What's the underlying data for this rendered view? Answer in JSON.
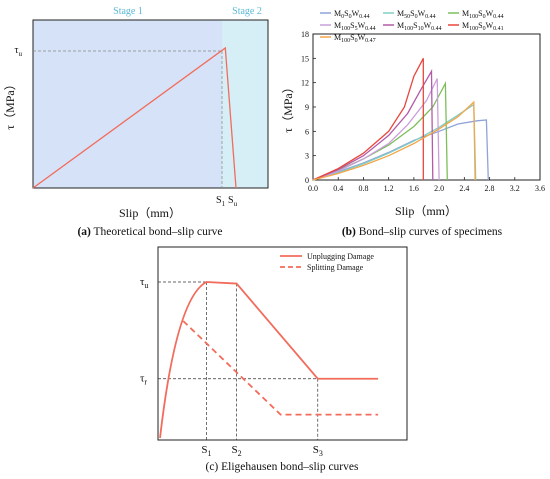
{
  "chart_data": [
    {
      "type": "line",
      "id": "a",
      "caption_tag": "(a)",
      "caption_text": " Theoretical bond–slip curve",
      "xlabel": "Slip（mm）",
      "ylabel": "τ（MPa）",
      "regions": [
        {
          "label": "Stage 1",
          "color": "#d6e2f7"
        },
        {
          "label": "Stage 2",
          "color": "#d6eff6"
        }
      ],
      "x_marks": [
        "S",
        "S"
      ],
      "x_mark_subs": [
        "1",
        "u"
      ],
      "y_marks": [
        "τ"
      ],
      "y_mark_subs": [
        "u"
      ],
      "curve_color": "#f26b5b",
      "series": [
        {
          "x": [
            0,
            0.9,
            0.95
          ],
          "y": [
            0,
            1,
            0
          ]
        }
      ],
      "xlim": [
        0,
        1.1
      ],
      "ylim": [
        0,
        1.2
      ]
    },
    {
      "type": "line",
      "id": "b",
      "caption_tag": "(b)",
      "caption_text": " Bond–slip curves of specimens",
      "xlabel": "Slip（mm）",
      "ylabel": "τ（MPa）",
      "xlim": [
        0,
        3.6
      ],
      "ylim": [
        0,
        18
      ],
      "xticks": [
        "0.0",
        "0.4",
        "0.8",
        "1.2",
        "1.6",
        "2.0",
        "2.4",
        "2.8",
        "3.2",
        "3.6"
      ],
      "yticks": [
        "0",
        "3",
        "6",
        "9",
        "12",
        "15",
        "18"
      ],
      "legend_location": "top",
      "series": [
        {
          "name": "M0S0W0.44",
          "label_main": [
            "M",
            "0",
            "S",
            "0",
            "W",
            "0.44"
          ],
          "color": "#8fa3d9",
          "points": [
            [
              0,
              0
            ],
            [
              0.4,
              1.0
            ],
            [
              0.8,
              2.1
            ],
            [
              1.2,
              3.4
            ],
            [
              1.6,
              4.9
            ],
            [
              2.0,
              6.0
            ],
            [
              2.3,
              6.9
            ],
            [
              2.6,
              7.3
            ],
            [
              2.75,
              7.4
            ],
            [
              2.78,
              0
            ]
          ]
        },
        {
          "name": "M50S0W0.44",
          "label_main": [
            "M",
            "50",
            "S",
            "0",
            "W",
            "0.44"
          ],
          "color": "#7fcfc4",
          "points": [
            [
              0,
              0
            ],
            [
              0.4,
              0.9
            ],
            [
              0.8,
              2.0
            ],
            [
              1.2,
              3.3
            ],
            [
              1.6,
              4.8
            ],
            [
              2.0,
              6.5
            ],
            [
              2.3,
              8.0
            ],
            [
              2.55,
              9.3
            ],
            [
              2.58,
              0
            ]
          ]
        },
        {
          "name": "M100S0W0.44",
          "label_main": [
            "M",
            "100",
            "S",
            "0",
            "W",
            "0.44"
          ],
          "color": "#7cbf5a",
          "points": [
            [
              0,
              0
            ],
            [
              0.4,
              1.2
            ],
            [
              0.8,
              2.6
            ],
            [
              1.2,
              4.3
            ],
            [
              1.6,
              6.6
            ],
            [
              1.9,
              9.0
            ],
            [
              2.1,
              11.9
            ],
            [
              2.13,
              0
            ]
          ]
        },
        {
          "name": "M100S5W0.44",
          "label_main": [
            "M",
            "100",
            "S",
            "5",
            "W",
            "0.44"
          ],
          "color": "#c9a0dc",
          "points": [
            [
              0,
              0
            ],
            [
              0.4,
              1.1
            ],
            [
              0.8,
              2.6
            ],
            [
              1.2,
              4.5
            ],
            [
              1.5,
              6.8
            ],
            [
              1.8,
              9.8
            ],
            [
              1.97,
              12.5
            ],
            [
              2.0,
              0
            ]
          ]
        },
        {
          "name": "M100S10W0.44",
          "label_main": [
            "M",
            "100",
            "S",
            "10",
            "W",
            "0.44"
          ],
          "color": "#b35aa8",
          "points": [
            [
              0,
              0
            ],
            [
              0.4,
              1.3
            ],
            [
              0.8,
              3.0
            ],
            [
              1.2,
              5.5
            ],
            [
              1.5,
              8.2
            ],
            [
              1.7,
              11.0
            ],
            [
              1.88,
              13.4
            ],
            [
              1.9,
              0
            ]
          ]
        },
        {
          "name": "M100S0W0.41",
          "label_main": [
            "M",
            "100",
            "S",
            "0",
            "W",
            "0.41"
          ],
          "color": "#e8463c",
          "points": [
            [
              0,
              0
            ],
            [
              0.4,
              1.4
            ],
            [
              0.8,
              3.3
            ],
            [
              1.2,
              6.0
            ],
            [
              1.45,
              9.0
            ],
            [
              1.6,
              12.8
            ],
            [
              1.75,
              15.0
            ],
            [
              1.75,
              0
            ]
          ]
        },
        {
          "name": "M100S0W0.47",
          "label_main": [
            "M",
            "100",
            "S",
            "0",
            "W",
            "0.47"
          ],
          "color": "#f3a64a",
          "points": [
            [
              0,
              0
            ],
            [
              0.4,
              0.8
            ],
            [
              0.8,
              1.8
            ],
            [
              1.2,
              3.0
            ],
            [
              1.6,
              4.5
            ],
            [
              2.0,
              6.3
            ],
            [
              2.3,
              7.8
            ],
            [
              2.55,
              9.6
            ],
            [
              2.57,
              0
            ]
          ]
        }
      ]
    },
    {
      "type": "line",
      "id": "c",
      "caption_text": "(c) Eligehausen bond–slip curves",
      "x_marks": [
        "S",
        "S",
        "S"
      ],
      "x_mark_subs": [
        "1",
        "2",
        "3"
      ],
      "y_marks": [
        "τ",
        "τ"
      ],
      "y_mark_subs": [
        "u",
        "r"
      ],
      "color": "#f26b5b",
      "xlim": [
        0,
        1
      ],
      "ylim": [
        0,
        1
      ],
      "series": [
        {
          "name": "Unplugging Damage",
          "style": "solid",
          "points": [
            [
              0,
              0
            ],
            [
              0.08,
              0.55
            ],
            [
              0.2,
              1.0
            ],
            [
              0.33,
              0.99
            ],
            [
              0.68,
              0.38
            ],
            [
              0.94,
              0.38
            ]
          ]
        },
        {
          "name": "Splitting Damage",
          "style": "dashed",
          "points": [
            [
              0.1,
              0.75
            ],
            [
              0.52,
              0.15
            ],
            [
              0.94,
              0.15
            ]
          ]
        }
      ]
    }
  ]
}
